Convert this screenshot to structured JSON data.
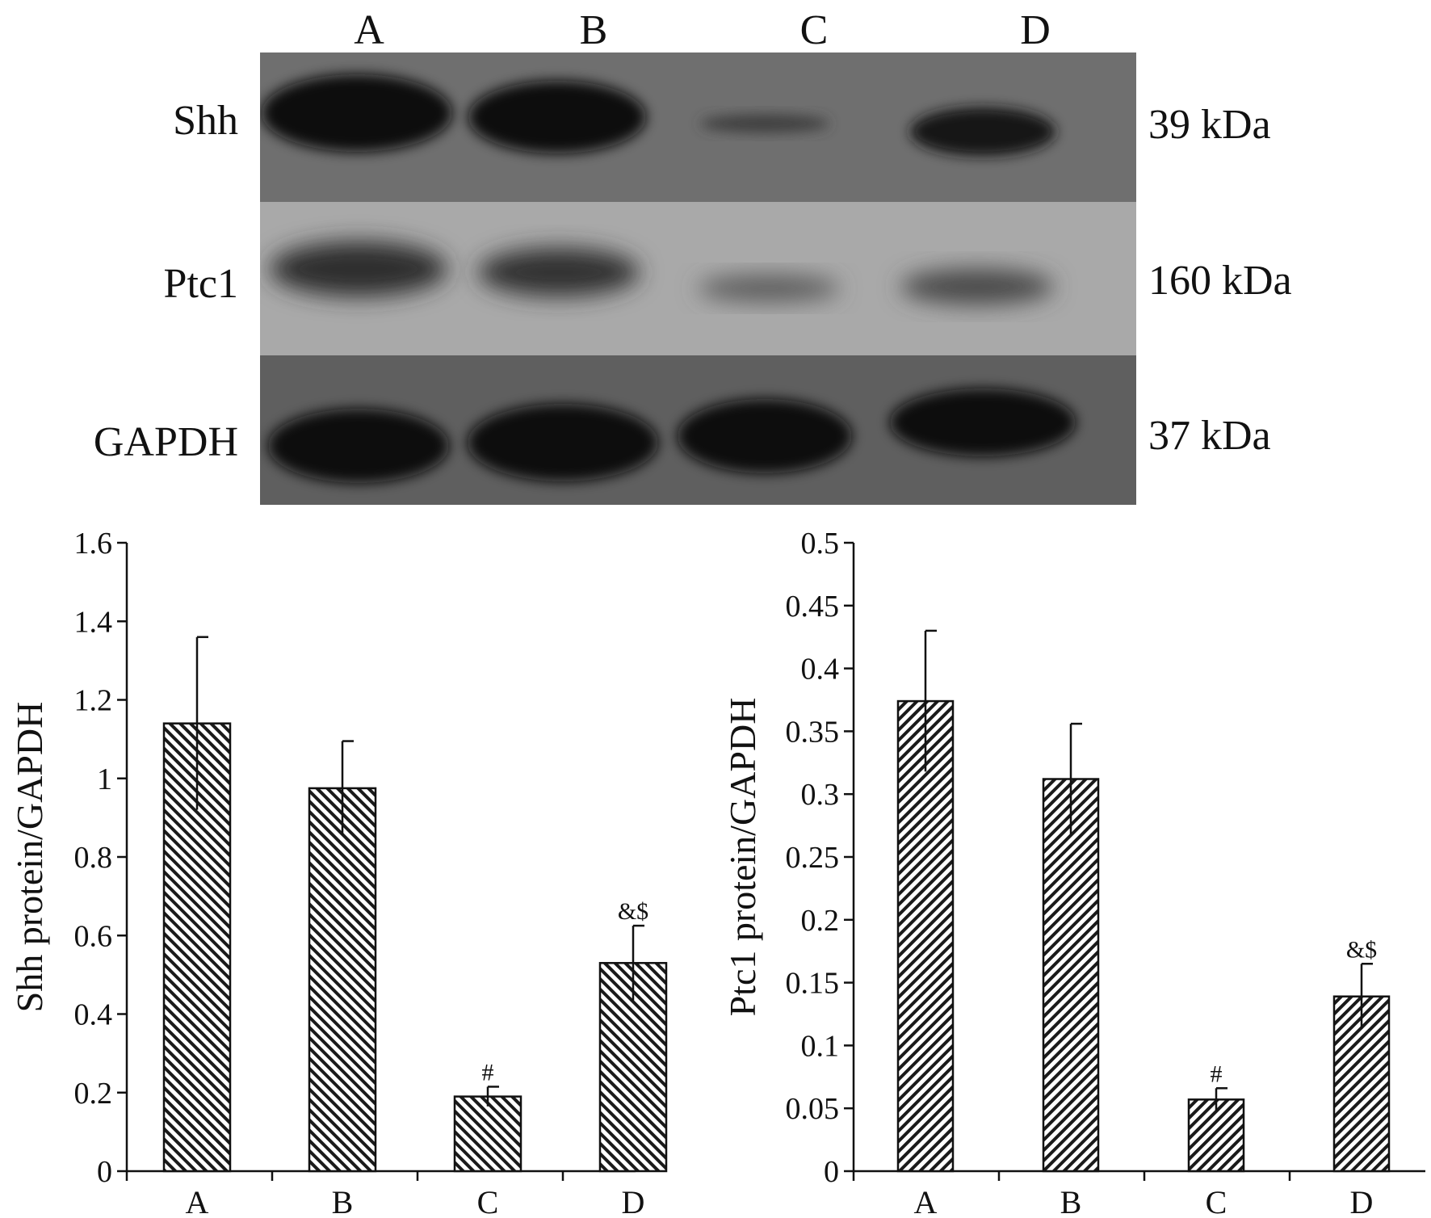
{
  "blot": {
    "lanes": [
      "A",
      "B",
      "C",
      "D"
    ],
    "rows": [
      {
        "protein": "Shh",
        "mw": "39 kDa",
        "intensity": [
          1.0,
          0.95,
          0.2,
          0.8
        ]
      },
      {
        "protein": "Ptc1",
        "mw": "160 kDa",
        "intensity": [
          0.85,
          0.8,
          0.45,
          0.6
        ]
      },
      {
        "protein": "GAPDH",
        "mw": "37 kDa",
        "intensity": [
          1.0,
          1.0,
          1.0,
          1.0
        ]
      }
    ],
    "colors": {
      "band": "#111111",
      "shh_bg": "#6f6f6f",
      "ptc1_bg": "#a9a9a9",
      "gapdh_bg": "#5f5f5f"
    }
  },
  "chart_data": [
    {
      "type": "bar",
      "categories": [
        "A",
        "B",
        "C",
        "D"
      ],
      "values": [
        1.14,
        0.975,
        0.19,
        0.53
      ],
      "errors": [
        0.22,
        0.12,
        0.025,
        0.095
      ],
      "annotations": [
        "",
        "",
        "#",
        "&$"
      ],
      "xlabel": "",
      "ylabel": "Shh protein/GAPDH",
      "ylim": [
        0,
        1.6
      ],
      "yticks": [
        "0",
        "0.2",
        "0.4",
        "0.6",
        "0.8",
        "1",
        "1.2",
        "1.4",
        "1.6"
      ],
      "pattern": "diagonal-hatch",
      "grid": false
    },
    {
      "type": "bar",
      "categories": [
        "A",
        "B",
        "C",
        "D"
      ],
      "values": [
        0.374,
        0.312,
        0.057,
        0.139
      ],
      "errors": [
        0.056,
        0.044,
        0.009,
        0.026
      ],
      "annotations": [
        "",
        "",
        "#",
        "&$"
      ],
      "xlabel": "",
      "ylabel": "Ptc1 protein/GAPDH",
      "ylim": [
        0,
        0.5
      ],
      "yticks": [
        "0",
        "0.05",
        "0.1",
        "0.15",
        "0.2",
        "0.25",
        "0.3",
        "0.35",
        "0.4",
        "0.45",
        "0.5"
      ],
      "pattern": "diagonal-hatch",
      "grid": false
    }
  ]
}
